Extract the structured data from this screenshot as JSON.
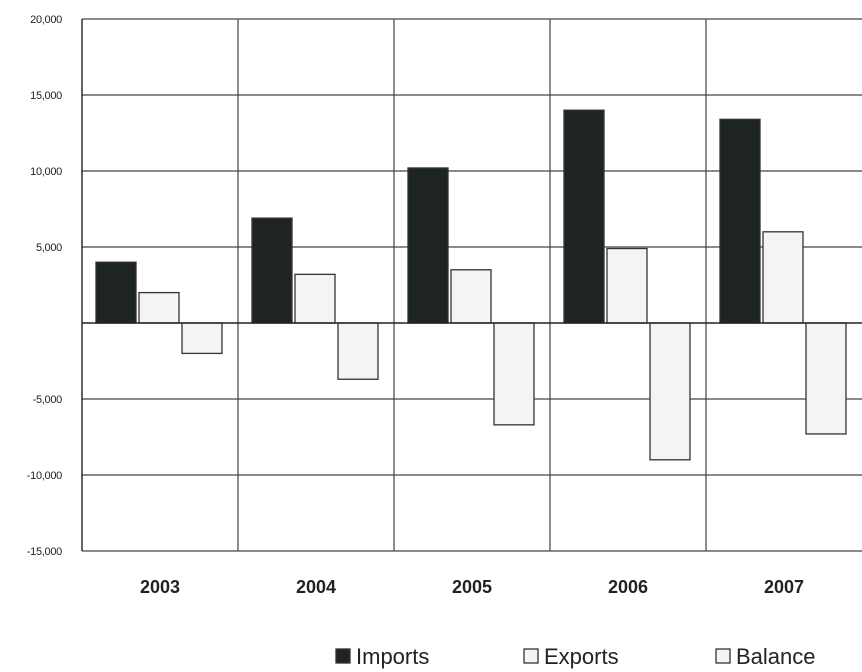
{
  "chart_data": {
    "type": "bar",
    "categories": [
      "2003",
      "2004",
      "2005",
      "2006",
      "2007"
    ],
    "series": [
      {
        "name": "Imports",
        "values": [
          4000,
          6900,
          10200,
          14000,
          13400
        ],
        "color": "#1e2424"
      },
      {
        "name": "Exports",
        "values": [
          2000,
          3200,
          3500,
          4900,
          6000
        ],
        "color": "#f4f4f4"
      },
      {
        "name": "Balance",
        "values": [
          -2000,
          -3700,
          -6700,
          -9000,
          -7300
        ],
        "color": "#f4f4f4"
      }
    ],
    "ylim": [
      -15000,
      20000
    ],
    "yticks": [
      {
        "value": 20000,
        "label": "20,000"
      },
      {
        "value": 15000,
        "label": "15,000"
      },
      {
        "value": 10000,
        "label": "10,000"
      },
      {
        "value": 5000,
        "label": "5,000"
      },
      {
        "value": -5000,
        "label": "-5,000"
      },
      {
        "value": -10000,
        "label": "-10,000"
      },
      {
        "value": -15000,
        "label": "-15,000"
      }
    ],
    "grid": true,
    "legend_position": "bottom-right"
  }
}
